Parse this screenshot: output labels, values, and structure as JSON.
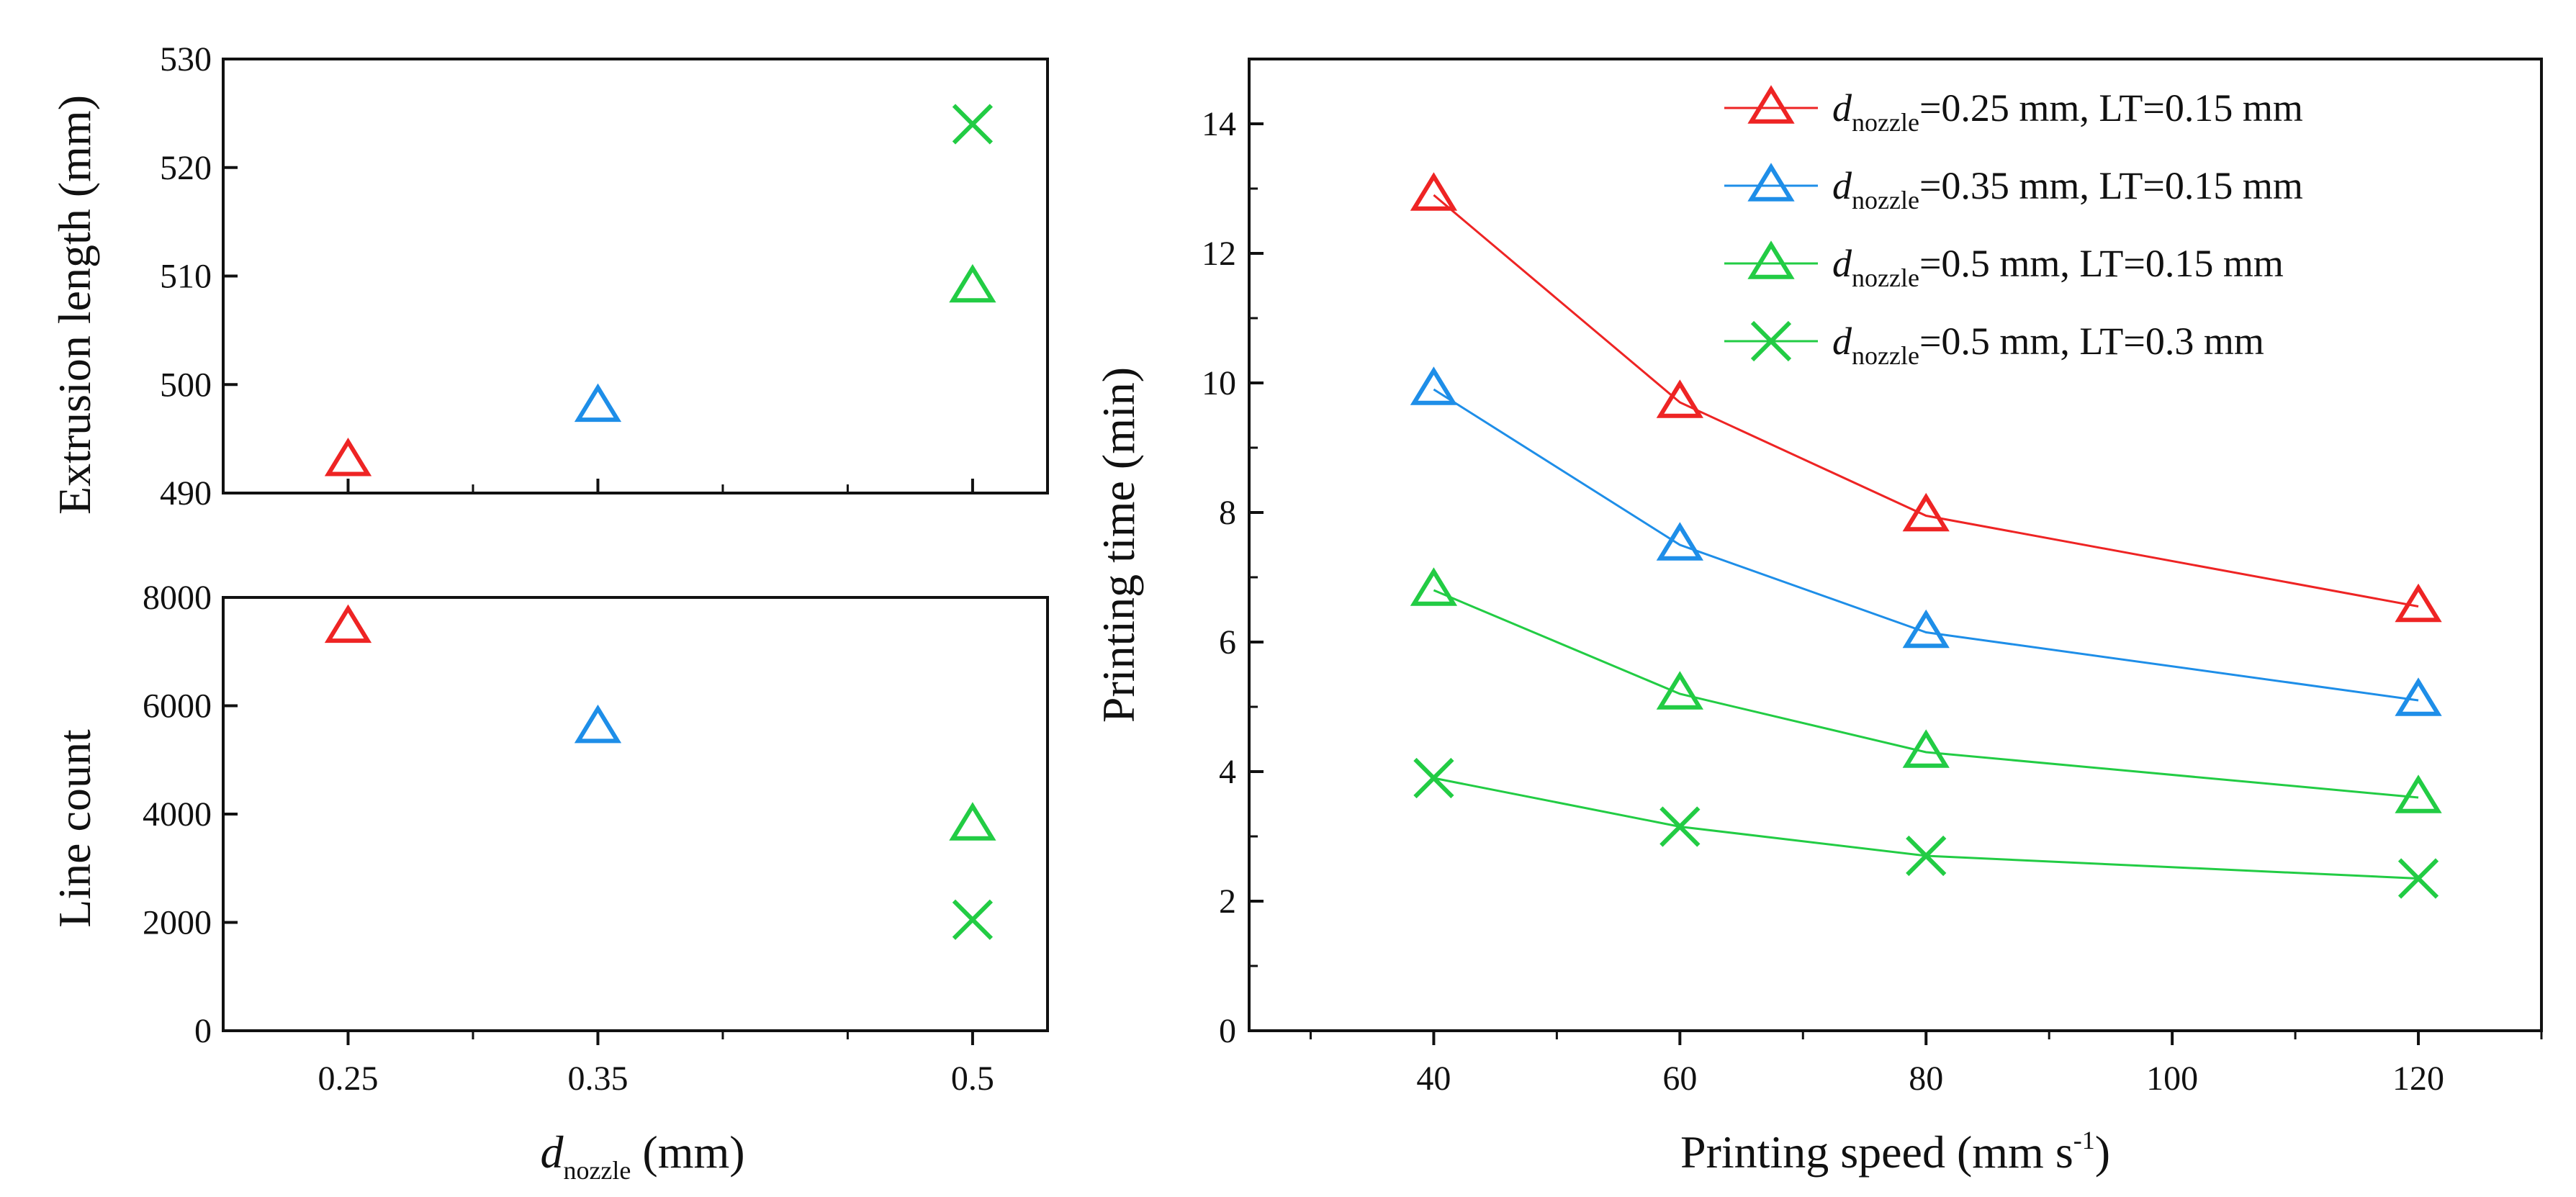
{
  "colors": {
    "red": "#ee2424",
    "blue": "#1e8ee8",
    "green": "#22cc44",
    "axis": "#111111"
  },
  "chart_data": [
    {
      "id": "extrusion",
      "type": "scatter",
      "xlabel": "",
      "ylabel": "Extrusion length (mm)",
      "x_categories": [
        "0.25",
        "0.35",
        "0.5"
      ],
      "ylim": [
        490,
        530
      ],
      "yticks": [
        "490",
        "500",
        "510",
        "520",
        "530"
      ],
      "points": [
        {
          "x": 0.25,
          "y": 493,
          "marker": "triangle",
          "color": "red"
        },
        {
          "x": 0.35,
          "y": 498,
          "marker": "triangle",
          "color": "blue"
        },
        {
          "x": 0.5,
          "y": 509,
          "marker": "triangle",
          "color": "green"
        },
        {
          "x": 0.5,
          "y": 524,
          "marker": "cross",
          "color": "green"
        }
      ]
    },
    {
      "id": "linecount",
      "type": "scatter",
      "xlabel_prefix": "d",
      "xlabel_sub": "nozzle",
      "xlabel_suffix": " (mm)",
      "ylabel": "Line count",
      "x_categories": [
        "0.25",
        "0.35",
        "0.5"
      ],
      "xlim": [
        0.2,
        0.53
      ],
      "ylim": [
        0,
        8000
      ],
      "yticks": [
        "0",
        "2000",
        "4000",
        "6000",
        "8000"
      ],
      "points": [
        {
          "x": 0.25,
          "y": 7450,
          "marker": "triangle",
          "color": "red"
        },
        {
          "x": 0.35,
          "y": 5600,
          "marker": "triangle",
          "color": "blue"
        },
        {
          "x": 0.5,
          "y": 3800,
          "marker": "triangle",
          "color": "green"
        },
        {
          "x": 0.5,
          "y": 2050,
          "marker": "cross",
          "color": "green"
        }
      ]
    },
    {
      "id": "printtime",
      "type": "line",
      "xlabel": "Printing speed (mm s",
      "xlabel_sup": "-1",
      "xlabel_close": ")",
      "ylabel": "Printing time (min)",
      "xlim": [
        25,
        130
      ],
      "ylim": [
        0,
        15
      ],
      "xticks": [
        "40",
        "60",
        "80",
        "100",
        "120"
      ],
      "yticks": [
        "0",
        "2",
        "4",
        "6",
        "8",
        "10",
        "12",
        "14"
      ],
      "x": [
        40,
        60,
        80,
        120
      ],
      "series": [
        {
          "name_prefix": "d",
          "name_sub": "nozzle",
          "name": "=0.25 mm, LT=0.15 mm",
          "marker": "triangle",
          "color": "red",
          "values": [
            12.9,
            9.7,
            7.95,
            6.55
          ]
        },
        {
          "name_prefix": "d",
          "name_sub": "nozzle",
          "name": "=0.35 mm, LT=0.15 mm",
          "marker": "triangle",
          "color": "blue",
          "values": [
            9.9,
            7.5,
            6.15,
            5.1
          ]
        },
        {
          "name_prefix": "d",
          "name_sub": "nozzle",
          "name": "=0.5 mm, LT=0.15 mm",
          "marker": "triangle",
          "color": "green",
          "values": [
            6.8,
            5.2,
            4.3,
            3.6
          ]
        },
        {
          "name_prefix": "d",
          "name_sub": "nozzle",
          "name": "=0.5 mm, LT=0.3 mm",
          "marker": "cross",
          "color": "green",
          "values": [
            3.9,
            3.15,
            2.7,
            2.35
          ]
        }
      ],
      "legend_position": "top-right"
    }
  ]
}
